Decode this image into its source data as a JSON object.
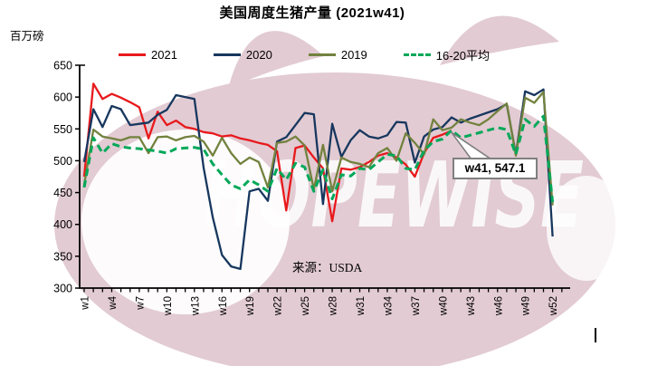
{
  "title": "美国周度生猪产量 (2021w41)",
  "y_unit": "百万磅",
  "source": "来源：USDA",
  "watermark": {
    "text": "HOPEWISE",
    "pig_color": "#e2cbd3",
    "text_color": "#ffffff"
  },
  "annotation": {
    "text": "w41, 547.1",
    "week": 41,
    "value": 547.1,
    "border_color": "#7f7f7f"
  },
  "chart_data": {
    "type": "line",
    "title": "美国周度生猪产量 (2021w41)",
    "ylabel": "百万磅",
    "xlabel": "",
    "ylim": [
      300,
      650
    ],
    "ytick_step": 50,
    "yticks": [
      300,
      350,
      400,
      450,
      500,
      550,
      600,
      650
    ],
    "x_tick_labels": [
      "w1",
      "w4",
      "w7",
      "w10",
      "w13",
      "w16",
      "w19",
      "w22",
      "w25",
      "w28",
      "w31",
      "w34",
      "w37",
      "w40",
      "w43",
      "w46",
      "w49",
      "w52"
    ],
    "weeks_total": 53,
    "grid": false,
    "legend_position": "top",
    "series": [
      {
        "name": "2021",
        "color": "#e8191c",
        "dash": "solid",
        "start_week": 1,
        "values": [
          475,
          621,
          597,
          605,
          599,
          592,
          584,
          535,
          577,
          556,
          563,
          553,
          550,
          545,
          543,
          538,
          540,
          535,
          532,
          528,
          525,
          515,
          422,
          520,
          524,
          505,
          488,
          405,
          488,
          486,
          490,
          498,
          508,
          512,
          505,
          494,
          475,
          512,
          536,
          541,
          547.1
        ]
      },
      {
        "name": "2020",
        "color": "#17375e",
        "dash": "solid",
        "start_week": 1,
        "values": [
          498,
          581,
          553,
          586,
          581,
          556,
          558,
          560,
          572,
          580,
          603,
          600,
          597,
          489,
          411,
          352,
          334,
          330,
          452,
          456,
          437,
          530,
          537,
          556,
          575,
          573,
          432,
          558,
          506,
          532,
          548,
          538,
          535,
          540,
          561,
          560,
          497,
          538,
          549,
          553,
          568,
          560,
          566,
          571,
          576,
          581,
          589,
          510,
          609,
          603,
          612,
          381
        ]
      },
      {
        "name": "2019",
        "color": "#72823e",
        "dash": "solid",
        "start_week": 1,
        "values": [
          462,
          549,
          538,
          535,
          532,
          537,
          537,
          512,
          537,
          538,
          532,
          537,
          539,
          530,
          508,
          536,
          512,
          495,
          505,
          498,
          458,
          528,
          530,
          538,
          524,
          455,
          525,
          452,
          505,
          498,
          495,
          490,
          512,
          520,
          500,
          543,
          528,
          510,
          565,
          548,
          552,
          565,
          560,
          556,
          565,
          578,
          590,
          508,
          599,
          591,
          608,
          430
        ]
      },
      {
        "name": "16-20平均",
        "color": "#00a859",
        "dash": "dashed",
        "start_week": 1,
        "values": [
          458,
          536,
          512,
          527,
          522,
          520,
          519,
          517,
          515,
          512,
          519,
          520,
          521,
          518,
          495,
          478,
          462,
          456,
          470,
          462,
          452,
          488,
          470,
          496,
          490,
          452,
          486,
          440,
          478,
          476,
          488,
          486,
          498,
          510,
          508,
          488,
          486,
          516,
          530,
          534,
          548,
          536,
          540,
          544,
          548,
          552,
          549,
          510,
          565,
          554,
          570,
          435
        ]
      }
    ]
  }
}
